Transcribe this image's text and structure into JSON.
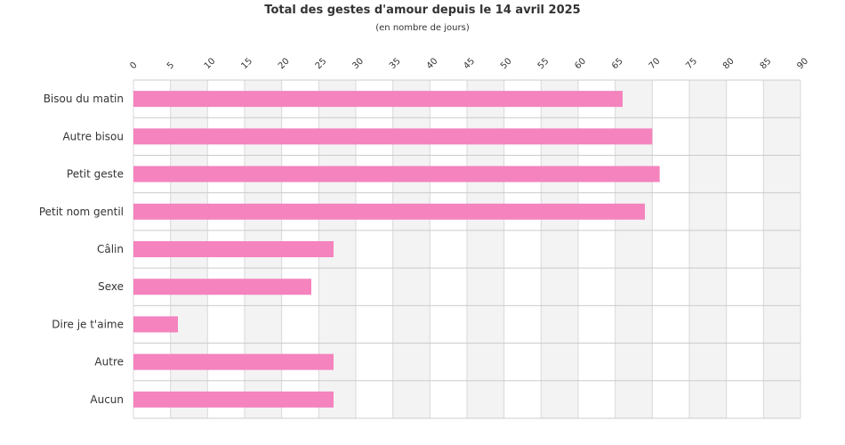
{
  "chart_data": {
    "type": "bar",
    "orientation": "horizontal",
    "title": "Total des gestes d'amour depuis le 14 avril 2025",
    "subtitle": "(en nombre de jours)",
    "categories": [
      "Bisou du matin",
      "Autre bisou",
      "Petit geste",
      "Petit nom gentil",
      "Câlin",
      "Sexe",
      "Dire je t'aime",
      "Autre",
      "Aucun"
    ],
    "values": [
      66,
      70,
      71,
      69,
      27,
      24,
      6,
      27,
      27
    ],
    "xlim": [
      0,
      90
    ],
    "xticks": [
      "0",
      "5",
      "10",
      "15",
      "20",
      "25",
      "30",
      "35",
      "40",
      "45",
      "50",
      "55",
      "60",
      "65",
      "70",
      "75",
      "80",
      "85",
      "90"
    ],
    "x_axis_position": "top",
    "grid": true,
    "alternating_band_color": "#f3f3f3",
    "bar_color": "#f483be"
  }
}
